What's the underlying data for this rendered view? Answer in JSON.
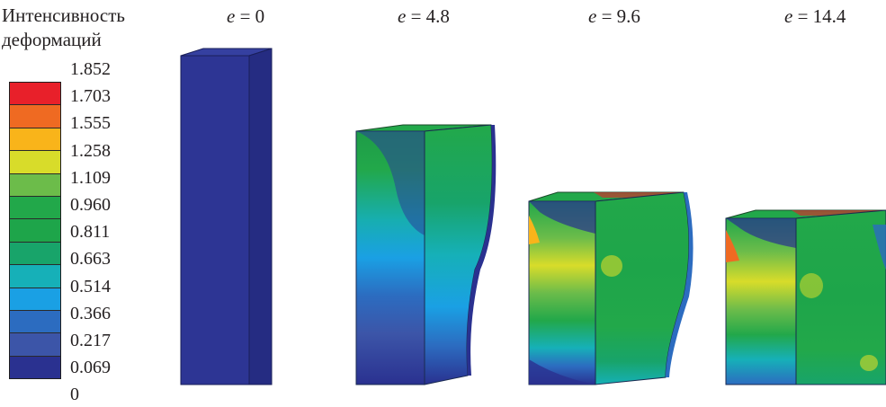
{
  "legend": {
    "title_line1": "Интенсивность",
    "title_line2": "деформаций",
    "labels": [
      "1.852",
      "1.703",
      "1.555",
      "1.258",
      "1.109",
      "0.960",
      "0.811",
      "0.663",
      "0.514",
      "0.366",
      "0.217",
      "0.069",
      "0"
    ],
    "colors": [
      "#e8202a",
      "#ef6a22",
      "#f9b41a",
      "#d8dc2a",
      "#6cbc4a",
      "#22a84a",
      "#1ea54a",
      "#18a46a",
      "#16b0b8",
      "#1aa0e4",
      "#2c6cc0",
      "#3c55a8",
      "#2a3190"
    ]
  },
  "stages": [
    {
      "var": "e",
      "eq": " = ",
      "value": "0"
    },
    {
      "var": "e",
      "eq": " = ",
      "value": "4.8"
    },
    {
      "var": "e",
      "eq": " = ",
      "value": "9.6"
    },
    {
      "var": "e",
      "eq": " = ",
      "value": "14.4"
    }
  ]
}
